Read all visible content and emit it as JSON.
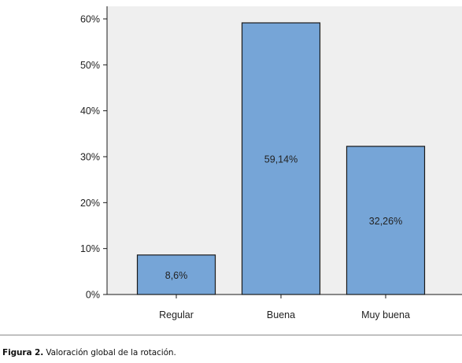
{
  "chart_data": {
    "type": "bar",
    "categories": [
      "Regular",
      "Buena",
      "Muy buena"
    ],
    "values": [
      8.6,
      59.14,
      32.26
    ],
    "data_labels": [
      "8,6%",
      "59,14%",
      "32,26%"
    ],
    "ylim": [
      0,
      60
    ],
    "y_ticks": [
      0,
      10,
      20,
      30,
      40,
      50,
      60
    ],
    "y_tick_labels": [
      "0%",
      "10%",
      "20%",
      "30%",
      "40%",
      "50%",
      "60%"
    ],
    "grid": false,
    "legend": "none"
  },
  "caption": {
    "label": "Figura 2.",
    "text": "Valoración global de la rotación."
  },
  "colors": {
    "plot_background": "#efefef",
    "bar_fill": "#76a5d7",
    "bar_stroke": "#1a1a1a",
    "axis": "#1a1a1a",
    "text": "#222222"
  }
}
